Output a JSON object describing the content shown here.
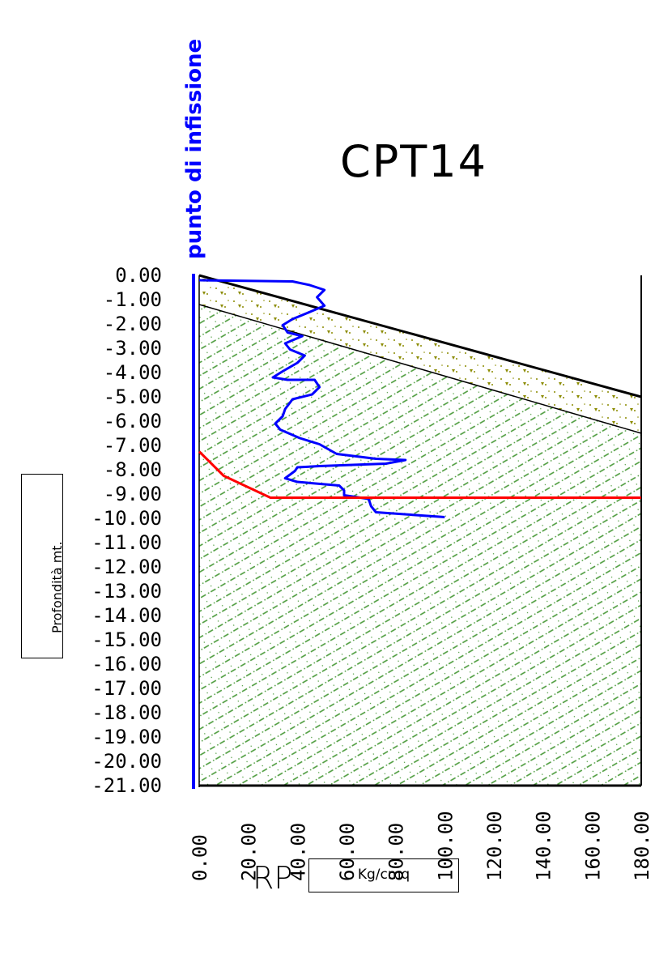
{
  "chart_data": {
    "type": "line",
    "title": "CPT14",
    "origin_label": "punto di infissione",
    "ylabel": "Profondità mt.",
    "xlabel": "RP",
    "xunit": "Kg/cmq",
    "xlim": [
      0,
      180
    ],
    "ylim": [
      -21,
      0
    ],
    "x_ticks": [
      "0.00",
      "20.00",
      "40.00",
      "60.00",
      "80.00",
      "100.00",
      "120.00",
      "140.00",
      "160.00",
      "180.00"
    ],
    "y_ticks": [
      "0.00",
      "-1.00",
      "-2.00",
      "-3.00",
      "-4.00",
      "-5.00",
      "-6.00",
      "-7.00",
      "-8.00",
      "-9.00",
      "-10.00",
      "-11.00",
      "-12.00",
      "-13.00",
      "-14.00",
      "-15.00",
      "-16.00",
      "-17.00",
      "-18.00",
      "-19.00",
      "-20.00",
      "-21.00"
    ],
    "series": [
      {
        "color": "#0000ff",
        "points": [
          [
            0,
            -0.2
          ],
          [
            38,
            -0.25
          ],
          [
            45,
            -0.4
          ],
          [
            51,
            -0.6
          ],
          [
            48,
            -0.9
          ],
          [
            51,
            -1.25
          ],
          [
            44,
            -1.55
          ],
          [
            38,
            -1.8
          ],
          [
            34,
            -2.05
          ],
          [
            36,
            -2.35
          ],
          [
            42,
            -2.5
          ],
          [
            35,
            -2.8
          ],
          [
            37,
            -3.05
          ],
          [
            43,
            -3.3
          ],
          [
            40,
            -3.6
          ],
          [
            34,
            -3.95
          ],
          [
            30,
            -4.2
          ],
          [
            36,
            -4.3
          ],
          [
            47,
            -4.3
          ],
          [
            49,
            -4.6
          ],
          [
            46,
            -4.9
          ],
          [
            38,
            -5.1
          ],
          [
            35,
            -5.5
          ],
          [
            34,
            -5.8
          ],
          [
            31,
            -6.1
          ],
          [
            33,
            -6.35
          ],
          [
            41,
            -6.7
          ],
          [
            49,
            -6.95
          ],
          [
            56,
            -7.35
          ],
          [
            72,
            -7.55
          ],
          [
            84,
            -7.6
          ],
          [
            76,
            -7.75
          ],
          [
            49,
            -7.85
          ],
          [
            40,
            -7.9
          ],
          [
            39,
            -8.05
          ],
          [
            35,
            -8.35
          ],
          [
            40,
            -8.5
          ],
          [
            57,
            -8.65
          ],
          [
            59,
            -8.85
          ],
          [
            59,
            -9.05
          ],
          [
            69,
            -9.2
          ],
          [
            70,
            -9.5
          ],
          [
            72,
            -9.75
          ],
          [
            100,
            -9.95
          ]
        ]
      },
      {
        "color": "#ff0000",
        "points": [
          [
            0,
            -7.25
          ],
          [
            10,
            -8.25
          ],
          [
            29,
            -9.15
          ],
          [
            180,
            -9.15
          ]
        ]
      }
    ],
    "layers": [
      {
        "top_left": 0,
        "top_right": -5.0,
        "bottom_left": -1.2,
        "bottom_right": -6.5,
        "color": "#8b8b00",
        "pattern": "triangles and dots"
      },
      {
        "top_left": -1.2,
        "top_right": -6.5,
        "bottom": -21,
        "color": "#3a8a3a",
        "pattern": "diagonal dashes"
      }
    ],
    "grid": false
  }
}
